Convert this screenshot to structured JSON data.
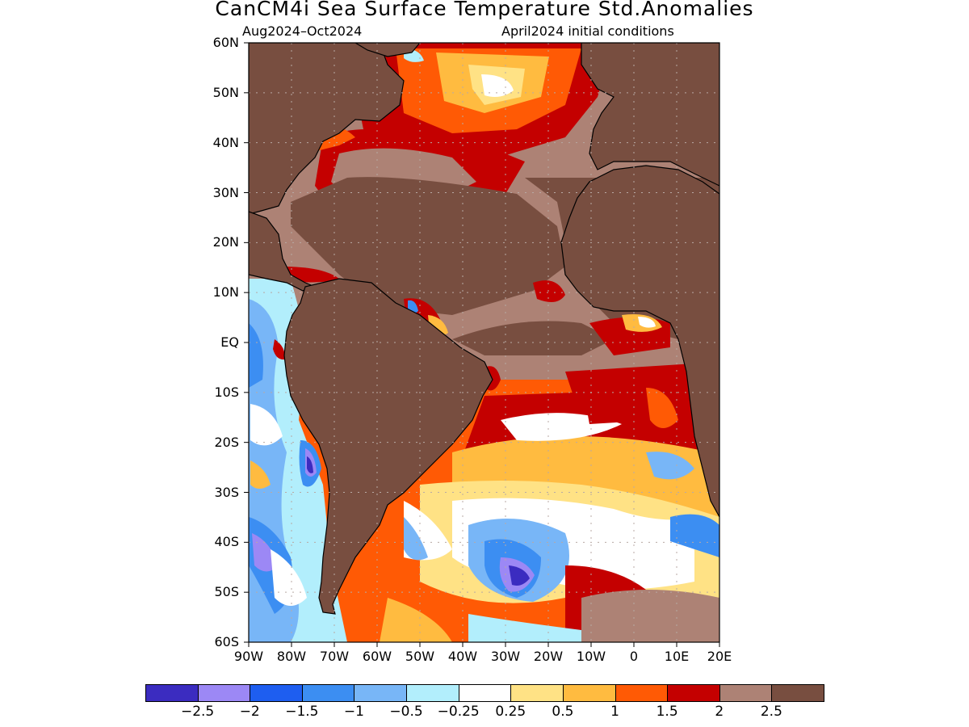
{
  "header": {
    "title": "CanCM4i Sea Surface Temperature Std.Anomalies",
    "period": "Aug2024–Oct2024",
    "initial_conditions": "April2024 initial conditions"
  },
  "map": {
    "lat_labels": [
      "60N",
      "50N",
      "40N",
      "30N",
      "20N",
      "10N",
      "EQ",
      "10S",
      "20S",
      "30S",
      "40S",
      "50S",
      "60S"
    ],
    "lon_labels": [
      "90W",
      "80W",
      "70W",
      "60W",
      "50W",
      "40W",
      "30W",
      "20W",
      "10W",
      "0",
      "10E",
      "20E"
    ],
    "land_color": "#784e40",
    "background_anomaly_color": "#ad8275",
    "grid": "dotted"
  },
  "colorbar": {
    "colors": [
      "#3b2cc0",
      "#9c88f5",
      "#1e5ef0",
      "#3c8ef2",
      "#78b6f7",
      "#b2eefc",
      "#ffffff",
      "#ffe285",
      "#ffbb40",
      "#ff5a05",
      "#c40000",
      "#ad8275",
      "#784e40"
    ],
    "labels": [
      "−2.5",
      "−2",
      "−1.5",
      "−1",
      "−0.5",
      "−0.25",
      "0.25",
      "0.5",
      "1",
      "1.5",
      "2",
      "2.5"
    ]
  }
}
